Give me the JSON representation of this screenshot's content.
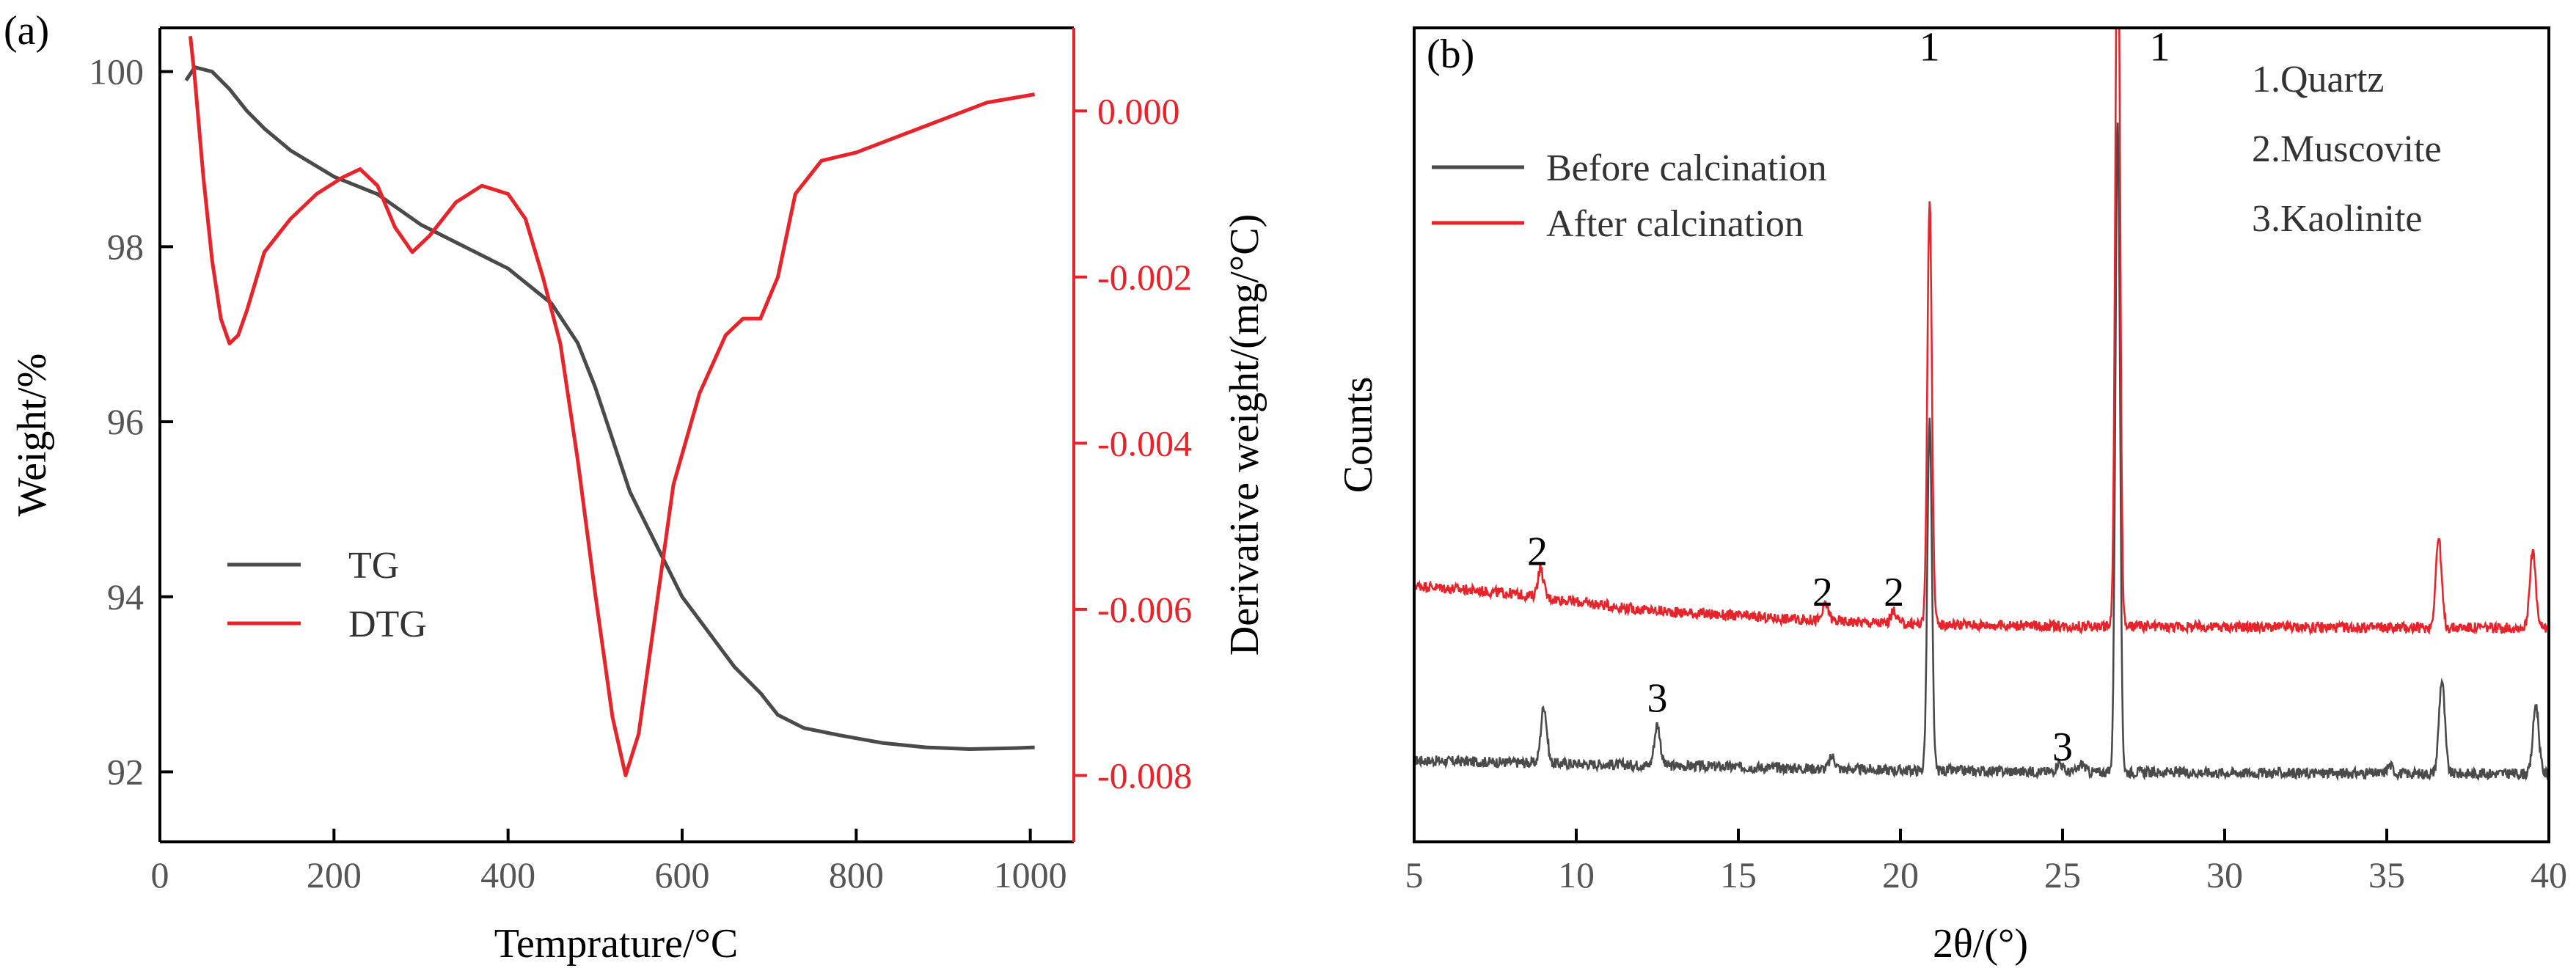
{
  "chart_data": [
    {
      "type": "line",
      "panel_label": "(a)",
      "xlabel": "Temprature/°C",
      "ylabel": "Weight/%",
      "y2label": "Derivative weight/(mg/°C)",
      "xlim": [
        0,
        1050
      ],
      "ylim": [
        91.2,
        100.5
      ],
      "y2lim": [
        -0.0088,
        0.001
      ],
      "xticks": [
        0,
        200,
        400,
        600,
        800,
        1000
      ],
      "xtick_labels": [
        "0",
        "200",
        "400",
        "600",
        "800",
        "1000"
      ],
      "yticks": [
        92,
        94,
        96,
        98,
        100
      ],
      "ytick_labels": [
        "92",
        "94",
        "96",
        "98",
        "100"
      ],
      "y2ticks": [
        0.0,
        -0.002,
        -0.004,
        -0.006,
        -0.008
      ],
      "y2tick_labels": [
        "0.000",
        "-0.002",
        "-0.004",
        "-0.006",
        "-0.008"
      ],
      "legend": [
        "TG",
        "DTG"
      ],
      "colors": {
        "TG": "#4a4a4a",
        "DTG": "#e8242a"
      },
      "series": [
        {
          "name": "TG",
          "axis": "left",
          "x": [
            30,
            40,
            60,
            80,
            100,
            120,
            150,
            200,
            250,
            300,
            350,
            400,
            450,
            480,
            500,
            520,
            540,
            560,
            580,
            600,
            630,
            660,
            690,
            710,
            740,
            780,
            830,
            880,
            930,
            980,
            1005
          ],
          "y": [
            99.9,
            100.05,
            100.0,
            99.8,
            99.55,
            99.35,
            99.1,
            98.8,
            98.6,
            98.25,
            98.0,
            97.75,
            97.35,
            96.9,
            96.4,
            95.8,
            95.2,
            94.8,
            94.4,
            94.0,
            93.6,
            93.2,
            92.9,
            92.65,
            92.5,
            92.42,
            92.33,
            92.28,
            92.26,
            92.27,
            92.28
          ]
        },
        {
          "name": "DTG",
          "axis": "right",
          "x": [
            35,
            40,
            50,
            60,
            70,
            80,
            90,
            100,
            120,
            150,
            180,
            210,
            230,
            250,
            270,
            290,
            310,
            340,
            370,
            400,
            420,
            440,
            460,
            480,
            500,
            520,
            535,
            550,
            570,
            590,
            620,
            650,
            670,
            690,
            710,
            730,
            760,
            800,
            850,
            900,
            950,
            1005
          ],
          "y": [
            0.0009,
            0.0004,
            -0.0008,
            -0.0018,
            -0.0025,
            -0.0028,
            -0.0027,
            -0.0024,
            -0.0017,
            -0.0013,
            -0.001,
            -0.0008,
            -0.0007,
            -0.0009,
            -0.0014,
            -0.0017,
            -0.0015,
            -0.0011,
            -0.0009,
            -0.001,
            -0.0013,
            -0.002,
            -0.0028,
            -0.0042,
            -0.0058,
            -0.0073,
            -0.008,
            -0.0075,
            -0.006,
            -0.0045,
            -0.0034,
            -0.0027,
            -0.0025,
            -0.0025,
            -0.002,
            -0.001,
            -0.0006,
            -0.0005,
            -0.0003,
            -0.0001,
            0.0001,
            0.0002
          ]
        }
      ]
    },
    {
      "type": "line",
      "panel_label": "(b)",
      "xlabel": "2θ/(°)",
      "ylabel": "Counts",
      "xlim": [
        5,
        40
      ],
      "ylim": [
        0,
        100
      ],
      "xticks": [
        5,
        10,
        15,
        20,
        25,
        30,
        35,
        40
      ],
      "xtick_labels": [
        "5",
        "10",
        "15",
        "20",
        "25",
        "30",
        "35",
        "40"
      ],
      "legend": [
        "Before calcination",
        "After calcination"
      ],
      "colors": {
        "Before calcination": "#4a4a4a",
        "After calcination": "#e8242a"
      },
      "phase_list": [
        "1.Quartz",
        "2.Muscovite",
        "3.Kaolinite"
      ],
      "peak_annotations": [
        {
          "label": "1",
          "x": 20.9,
          "y": 96
        },
        {
          "label": "1",
          "x": 28.0,
          "y": 96
        },
        {
          "label": "2",
          "x": 8.8,
          "y": 34
        },
        {
          "label": "2",
          "x": 17.6,
          "y": 29
        },
        {
          "label": "2",
          "x": 19.8,
          "y": 29
        },
        {
          "label": "3",
          "x": 12.5,
          "y": 16
        },
        {
          "label": "3",
          "x": 25.0,
          "y": 10
        }
      ],
      "series": [
        {
          "name": "Before calcination",
          "baseline": [
            [
              5,
              10.0
            ],
            [
              10,
              9.6
            ],
            [
              15,
              9.2
            ],
            [
              20,
              8.8
            ],
            [
              25,
              8.6
            ],
            [
              30,
              8.5
            ],
            [
              35,
              8.4
            ],
            [
              40,
              8.4
            ]
          ],
          "peaks": [
            [
              9.0,
              7
            ],
            [
              12.5,
              5
            ],
            [
              17.9,
              1.5
            ],
            [
              20.9,
              43
            ],
            [
              24.9,
              1.2
            ],
            [
              25.6,
              1.0
            ],
            [
              26.7,
              80
            ],
            [
              35.1,
              1.0
            ],
            [
              36.7,
              11.5
            ],
            [
              39.6,
              8.5
            ]
          ]
        },
        {
          "name": "After calcination",
          "baseline": [
            [
              5,
              31.5
            ],
            [
              8,
              30.5
            ],
            [
              12,
              28.5
            ],
            [
              16,
              27.5
            ],
            [
              20,
              26.8
            ],
            [
              25,
              26.5
            ],
            [
              30,
              26.4
            ],
            [
              35,
              26.3
            ],
            [
              40,
              26.3
            ]
          ],
          "peaks": [
            [
              8.9,
              3.5
            ],
            [
              17.7,
              2.0
            ],
            [
              19.8,
              1.5
            ],
            [
              20.9,
              52
            ],
            [
              26.7,
              95
            ],
            [
              36.6,
              11
            ],
            [
              39.5,
              9.5
            ]
          ]
        }
      ]
    }
  ]
}
